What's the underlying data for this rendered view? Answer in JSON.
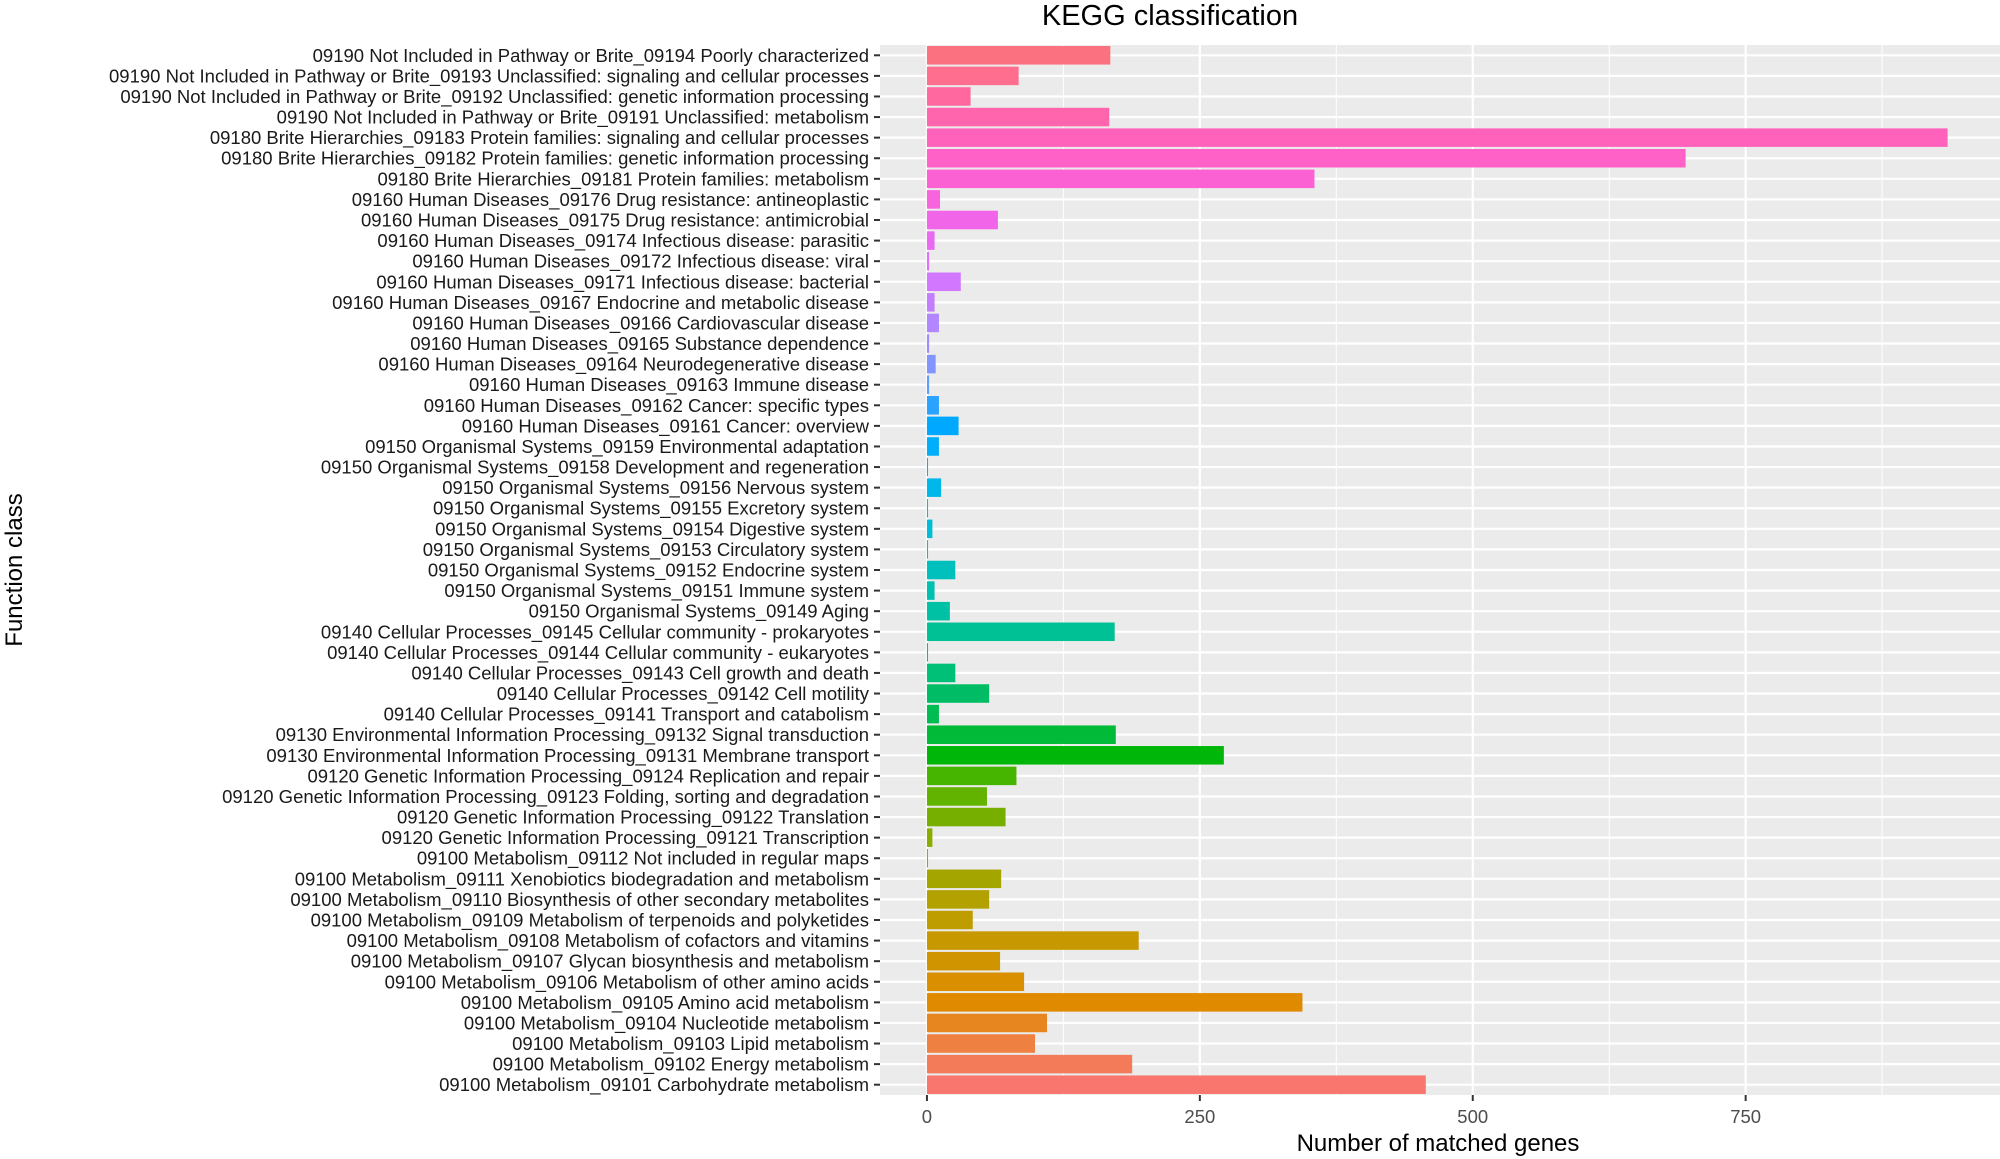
{
  "chart_data": {
    "type": "bar",
    "orientation": "horizontal",
    "title": "KEGG classification",
    "xlabel": "Number of matched genes",
    "ylabel": "Function class",
    "xlim": [
      -43,
      983
    ],
    "xticks": [
      0,
      250,
      500,
      750
    ],
    "grid": true,
    "legend": "none",
    "palette": "hue (one color per category)",
    "categories": [
      "09100 Metabolism_09101 Carbohydrate metabolism",
      "09100 Metabolism_09102 Energy metabolism",
      "09100 Metabolism_09103 Lipid metabolism",
      "09100 Metabolism_09104 Nucleotide metabolism",
      "09100 Metabolism_09105 Amino acid metabolism",
      "09100 Metabolism_09106 Metabolism of other amino acids",
      "09100 Metabolism_09107 Glycan biosynthesis and metabolism",
      "09100 Metabolism_09108 Metabolism of cofactors and vitamins",
      "09100 Metabolism_09109 Metabolism of terpenoids and polyketides",
      "09100 Metabolism_09110 Biosynthesis of other secondary metabolites",
      "09100 Metabolism_09111 Xenobiotics biodegradation and metabolism",
      "09100 Metabolism_09112 Not included in regular maps",
      "09120 Genetic Information Processing_09121 Transcription",
      "09120 Genetic Information Processing_09122 Translation",
      "09120 Genetic Information Processing_09123 Folding, sorting and degradation",
      "09120 Genetic Information Processing_09124 Replication and repair",
      "09130 Environmental Information Processing_09131 Membrane transport",
      "09130 Environmental Information Processing_09132 Signal transduction",
      "09140 Cellular Processes_09141 Transport and catabolism",
      "09140 Cellular Processes_09142 Cell motility",
      "09140 Cellular Processes_09143 Cell growth and death",
      "09140 Cellular Processes_09144 Cellular community - eukaryotes",
      "09140 Cellular Processes_09145 Cellular community - prokaryotes",
      "09150 Organismal Systems_09149 Aging",
      "09150 Organismal Systems_09151 Immune system",
      "09150 Organismal Systems_09152 Endocrine system",
      "09150 Organismal Systems_09153 Circulatory system",
      "09150 Organismal Systems_09154 Digestive system",
      "09150 Organismal Systems_09155 Excretory system",
      "09150 Organismal Systems_09156 Nervous system",
      "09150 Organismal Systems_09158 Development and regeneration",
      "09150 Organismal Systems_09159 Environmental adaptation",
      "09160 Human Diseases_09161 Cancer: overview",
      "09160 Human Diseases_09162 Cancer: specific types",
      "09160 Human Diseases_09163 Immune disease",
      "09160 Human Diseases_09164 Neurodegenerative disease",
      "09160 Human Diseases_09165 Substance dependence",
      "09160 Human Diseases_09166 Cardiovascular disease",
      "09160 Human Diseases_09167 Endocrine and metabolic disease",
      "09160 Human Diseases_09171 Infectious disease: bacterial",
      "09160 Human Diseases_09172 Infectious disease: viral",
      "09160 Human Diseases_09174 Infectious disease: parasitic",
      "09160 Human Diseases_09175 Drug resistance: antimicrobial",
      "09160 Human Diseases_09176 Drug resistance: antineoplastic",
      "09180 Brite Hierarchies_09181 Protein families: metabolism",
      "09180 Brite Hierarchies_09182 Protein families: genetic information processing",
      "09180 Brite Hierarchies_09183 Protein families: signaling and cellular processes",
      "09190 Not Included in Pathway or Brite_09191 Unclassified: metabolism",
      "09190 Not Included in Pathway or Brite_09192 Unclassified: genetic information processing",
      "09190 Not Included in Pathway or Brite_09193 Unclassified: signaling and cellular processes",
      "09190 Not Included in Pathway or Brite_09194 Poorly characterized"
    ],
    "values": [
      457,
      188,
      99,
      110,
      344,
      89,
      67,
      194,
      42,
      57,
      68,
      1,
      5,
      72,
      55,
      82,
      272,
      173,
      11,
      57,
      26,
      1,
      172,
      21,
      7,
      26,
      1,
      5,
      1,
      13,
      1,
      11,
      29,
      11,
      2,
      8,
      2,
      11,
      7,
      31,
      2,
      7,
      65,
      12,
      355,
      695,
      935,
      167,
      40,
      84,
      168
    ]
  }
}
